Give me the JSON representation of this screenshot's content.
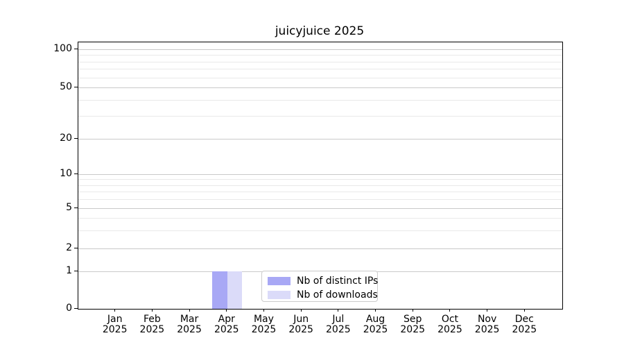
{
  "title": "juicyjuice 2025",
  "chart_data": {
    "type": "bar",
    "title": "juicyjuice 2025",
    "categories": [
      "Jan",
      "Feb",
      "Mar",
      "Apr",
      "May",
      "Jun",
      "Jul",
      "Aug",
      "Sep",
      "Oct",
      "Nov",
      "Dec"
    ],
    "year": "2025",
    "series": [
      {
        "name": "Nb of distinct IPs",
        "color": "#a8a8f5",
        "values": [
          0,
          0,
          0,
          1,
          0,
          0,
          0,
          0,
          0,
          0,
          0,
          0
        ]
      },
      {
        "name": "Nb of downloads",
        "color": "#dbdbf9",
        "values": [
          0,
          0,
          0,
          1,
          0,
          0,
          0,
          0,
          0,
          0,
          0,
          0
        ]
      }
    ],
    "yscale": "symlog",
    "yticks": [
      0,
      1,
      2,
      5,
      10,
      20,
      50,
      100
    ],
    "minor_yticks": [
      3,
      4,
      6,
      7,
      8,
      9,
      30,
      40,
      60,
      70,
      80,
      90
    ],
    "ylim": [
      0,
      113
    ],
    "grid": "horizontal major+minor",
    "legend_position": "lower center",
    "colors": {
      "major_grid": "#c9c9c9",
      "minor_grid": "#e9e9e9",
      "axis": "#000000",
      "background": "#ffffff"
    }
  },
  "legend": {
    "items": [
      {
        "label": "Nb of distinct IPs",
        "color": "#a8a8f5"
      },
      {
        "label": "Nb of downloads",
        "color": "#dbdbf9"
      }
    ]
  }
}
